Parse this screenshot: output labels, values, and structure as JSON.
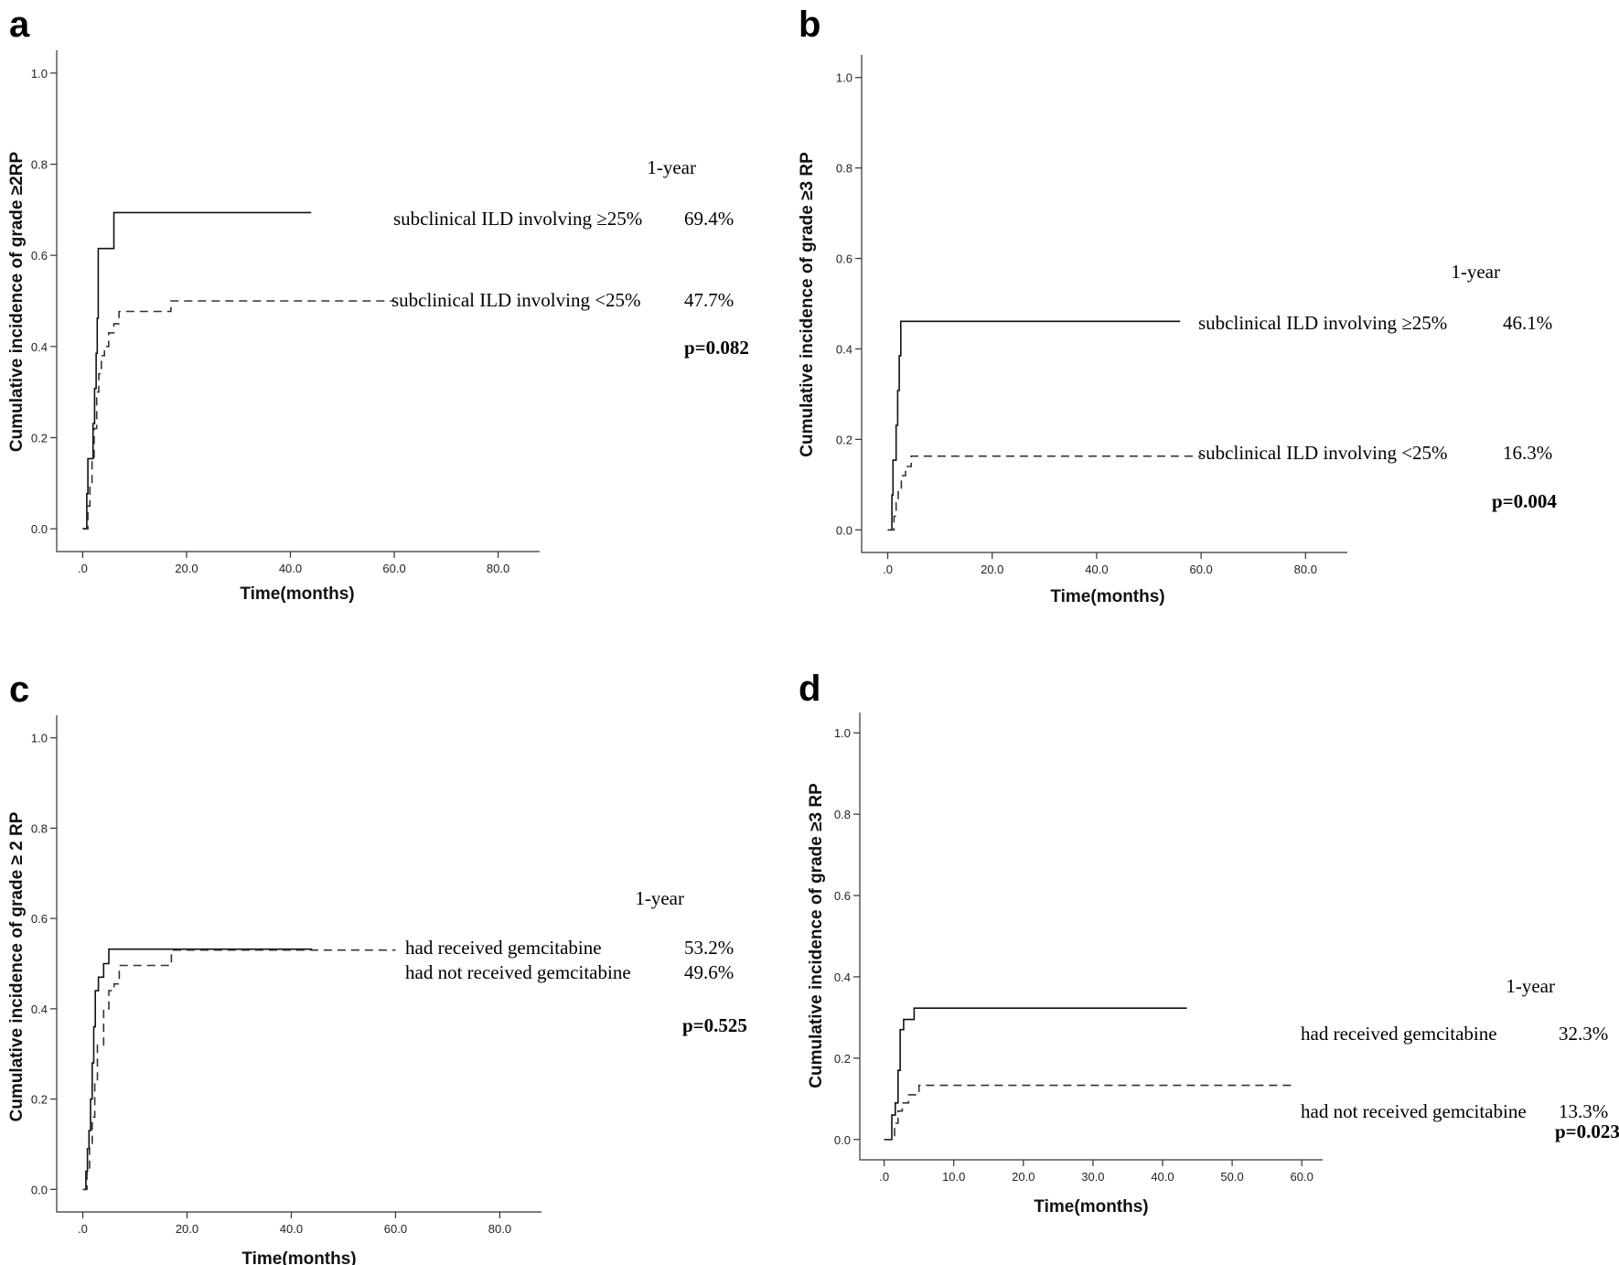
{
  "chart_data": [
    {
      "type": "line",
      "panel": "a",
      "xlabel": "Time(months)",
      "ylabel": "Cumulative incidence of grade ≥2RP",
      "xticks": [
        ".0",
        "20.0",
        "40.0",
        "60.0",
        "80.0"
      ],
      "xtick_values": [
        0,
        20,
        40,
        60,
        80
      ],
      "yticks": [
        "0.0",
        "0.2",
        "0.4",
        "0.6",
        "0.8",
        "1.0"
      ],
      "ytick_values": [
        0,
        0.2,
        0.4,
        0.6,
        0.8,
        1.0
      ],
      "xlim": [
        -5,
        88
      ],
      "ylim": [
        -0.05,
        1.05
      ],
      "series": [
        {
          "name": "subclinical ILD involving ≥25%",
          "style": "solid",
          "points": [
            [
              0,
              0
            ],
            [
              0.8,
              0
            ],
            [
              0.8,
              0.077
            ],
            [
              1,
              0.077
            ],
            [
              1,
              0.154
            ],
            [
              2,
              0.154
            ],
            [
              2,
              0.231
            ],
            [
              2.3,
              0.231
            ],
            [
              2.3,
              0.308
            ],
            [
              2.6,
              0.308
            ],
            [
              2.6,
              0.385
            ],
            [
              2.8,
              0.385
            ],
            [
              2.8,
              0.462
            ],
            [
              3,
              0.462
            ],
            [
              3,
              0.615
            ],
            [
              6,
              0.615
            ],
            [
              6,
              0.694
            ],
            [
              44,
              0.694
            ]
          ]
        },
        {
          "name": "subclinical ILD involving <25%",
          "style": "dashed",
          "points": [
            [
              0,
              0
            ],
            [
              1,
              0
            ],
            [
              1,
              0.05
            ],
            [
              1.4,
              0.05
            ],
            [
              1.4,
              0.1
            ],
            [
              1.8,
              0.1
            ],
            [
              1.8,
              0.15
            ],
            [
              2.2,
              0.15
            ],
            [
              2.2,
              0.22
            ],
            [
              2.7,
              0.22
            ],
            [
              2.7,
              0.3
            ],
            [
              3.1,
              0.3
            ],
            [
              3.1,
              0.34
            ],
            [
              3.6,
              0.34
            ],
            [
              3.6,
              0.38
            ],
            [
              4.2,
              0.38
            ],
            [
              4.2,
              0.4
            ],
            [
              5,
              0.4
            ],
            [
              5,
              0.43
            ],
            [
              6,
              0.43
            ],
            [
              6,
              0.45
            ],
            [
              7,
              0.45
            ],
            [
              7,
              0.477
            ],
            [
              17,
              0.477
            ],
            [
              17,
              0.5
            ],
            [
              60,
              0.5
            ]
          ]
        }
      ],
      "header": "1-year",
      "annotations": [
        {
          "label": "subclinical ILD involving ≥25%",
          "value": "69.4%"
        },
        {
          "label": "subclinical ILD involving <25%",
          "value": "47.7%"
        }
      ],
      "p_value": "p=0.082"
    },
    {
      "type": "line",
      "panel": "b",
      "xlabel": "Time(months)",
      "ylabel": "Cumulative incidence of grade ≥3 RP",
      "xticks": [
        ".0",
        "20.0",
        "40.0",
        "60.0",
        "80.0"
      ],
      "xtick_values": [
        0,
        20,
        40,
        60,
        80
      ],
      "yticks": [
        "0.0",
        "0.2",
        "0.4",
        "0.6",
        "0.8",
        "1.0"
      ],
      "ytick_values": [
        0,
        0.2,
        0.4,
        0.6,
        0.8,
        1.0
      ],
      "xlim": [
        -5,
        88
      ],
      "ylim": [
        -0.05,
        1.05
      ],
      "series": [
        {
          "name": "subclinical ILD involving ≥25%",
          "style": "solid",
          "points": [
            [
              0,
              0
            ],
            [
              0.8,
              0
            ],
            [
              0.8,
              0.077
            ],
            [
              1,
              0.077
            ],
            [
              1,
              0.154
            ],
            [
              1.6,
              0.154
            ],
            [
              1.6,
              0.231
            ],
            [
              1.9,
              0.231
            ],
            [
              1.9,
              0.308
            ],
            [
              2.2,
              0.308
            ],
            [
              2.2,
              0.385
            ],
            [
              2.5,
              0.385
            ],
            [
              2.5,
              0.461
            ],
            [
              56,
              0.461
            ]
          ]
        },
        {
          "name": "subclinical ILD involving <25%",
          "style": "dashed",
          "points": [
            [
              0,
              0
            ],
            [
              1.2,
              0
            ],
            [
              1.2,
              0.03
            ],
            [
              1.6,
              0.03
            ],
            [
              1.6,
              0.06
            ],
            [
              2,
              0.06
            ],
            [
              2,
              0.09
            ],
            [
              2.6,
              0.09
            ],
            [
              2.6,
              0.12
            ],
            [
              3.4,
              0.12
            ],
            [
              3.4,
              0.14
            ],
            [
              4.5,
              0.14
            ],
            [
              4.5,
              0.163
            ],
            [
              60,
              0.163
            ]
          ]
        }
      ],
      "header": "1-year",
      "annotations": [
        {
          "label": "subclinical ILD involving ≥25%",
          "value": "46.1%"
        },
        {
          "label": "subclinical ILD involving <25%",
          "value": "16.3%"
        }
      ],
      "p_value": "p=0.004"
    },
    {
      "type": "line",
      "panel": "c",
      "xlabel": "Time(months)",
      "ylabel": "Cumulative incidence of grade ≥ 2 RP",
      "xticks": [
        ".0",
        "20.0",
        "40.0",
        "60.0",
        "80.0"
      ],
      "xtick_values": [
        0,
        20,
        40,
        60,
        80
      ],
      "yticks": [
        "0.0",
        "0.2",
        "0.4",
        "0.6",
        "0.8",
        "1.0"
      ],
      "ytick_values": [
        0,
        0.2,
        0.4,
        0.6,
        0.8,
        1.0
      ],
      "xlim": [
        -5,
        88
      ],
      "ylim": [
        -0.05,
        1.05
      ],
      "series": [
        {
          "name": "had received gemcitabine",
          "style": "solid",
          "points": [
            [
              0,
              0
            ],
            [
              0.6,
              0
            ],
            [
              0.6,
              0.04
            ],
            [
              0.9,
              0.04
            ],
            [
              0.9,
              0.09
            ],
            [
              1.2,
              0.09
            ],
            [
              1.2,
              0.13
            ],
            [
              1.5,
              0.13
            ],
            [
              1.5,
              0.2
            ],
            [
              1.8,
              0.2
            ],
            [
              1.8,
              0.28
            ],
            [
              2.1,
              0.28
            ],
            [
              2.1,
              0.36
            ],
            [
              2.4,
              0.36
            ],
            [
              2.4,
              0.44
            ],
            [
              3,
              0.44
            ],
            [
              3,
              0.47
            ],
            [
              4,
              0.47
            ],
            [
              4,
              0.5
            ],
            [
              5,
              0.5
            ],
            [
              5,
              0.532
            ],
            [
              44,
              0.532
            ]
          ]
        },
        {
          "name": "had not received gemcitabine",
          "style": "dashed",
          "points": [
            [
              0,
              0
            ],
            [
              0.8,
              0
            ],
            [
              0.8,
              0.04
            ],
            [
              1.3,
              0.04
            ],
            [
              1.3,
              0.1
            ],
            [
              1.8,
              0.1
            ],
            [
              1.8,
              0.16
            ],
            [
              2.3,
              0.16
            ],
            [
              2.3,
              0.24
            ],
            [
              2.8,
              0.24
            ],
            [
              2.8,
              0.32
            ],
            [
              4,
              0.32
            ],
            [
              4,
              0.4
            ],
            [
              5,
              0.4
            ],
            [
              5,
              0.44
            ],
            [
              6,
              0.44
            ],
            [
              6,
              0.455
            ],
            [
              7,
              0.455
            ],
            [
              7,
              0.496
            ],
            [
              17,
              0.496
            ],
            [
              17,
              0.53
            ],
            [
              60,
              0.53
            ]
          ]
        }
      ],
      "header": "1-year",
      "annotations": [
        {
          "label": "had received gemcitabine",
          "value": "53.2%"
        },
        {
          "label": "had not received gemcitabine",
          "value": "49.6%"
        }
      ],
      "p_value": "p=0.525"
    },
    {
      "type": "line",
      "panel": "d",
      "xlabel": "Time(months)",
      "ylabel": "Cumulative incidence of grade ≥3 RP",
      "xticks": [
        ".0",
        "10.0",
        "20.0",
        "30.0",
        "40.0",
        "50.0",
        "60.0"
      ],
      "xtick_values": [
        0,
        10,
        20,
        30,
        40,
        50,
        60
      ],
      "yticks": [
        "0.0",
        "0.2",
        "0.4",
        "0.6",
        "0.8",
        "1.0"
      ],
      "ytick_values": [
        0,
        0.2,
        0.4,
        0.6,
        0.8,
        1.0
      ],
      "xlim": [
        -3.5,
        63
      ],
      "ylim": [
        -0.05,
        1.05
      ],
      "series": [
        {
          "name": "had received gemcitabine",
          "style": "solid",
          "points": [
            [
              0,
              0
            ],
            [
              1.1,
              0
            ],
            [
              1.1,
              0.06
            ],
            [
              1.6,
              0.06
            ],
            [
              1.6,
              0.09
            ],
            [
              2.0,
              0.09
            ],
            [
              2.0,
              0.17
            ],
            [
              2.3,
              0.17
            ],
            [
              2.3,
              0.27
            ],
            [
              2.8,
              0.27
            ],
            [
              2.8,
              0.295
            ],
            [
              4.3,
              0.295
            ],
            [
              4.3,
              0.323
            ],
            [
              43.5,
              0.323
            ]
          ]
        },
        {
          "name": "had not received gemcitabine",
          "style": "dashed",
          "points": [
            [
              0,
              0
            ],
            [
              1.5,
              0
            ],
            [
              1.5,
              0.04
            ],
            [
              2,
              0.04
            ],
            [
              2,
              0.07
            ],
            [
              2.6,
              0.07
            ],
            [
              2.6,
              0.09
            ],
            [
              3.5,
              0.09
            ],
            [
              3.5,
              0.11
            ],
            [
              5,
              0.11
            ],
            [
              5,
              0.133
            ],
            [
              59,
              0.133
            ]
          ]
        }
      ],
      "header": "1-year",
      "annotations": [
        {
          "label": "had received gemcitabine",
          "value": "32.3%"
        },
        {
          "label": "had not received gemcitabine",
          "value": "13.3%"
        }
      ],
      "p_value": "p=0.023"
    }
  ]
}
